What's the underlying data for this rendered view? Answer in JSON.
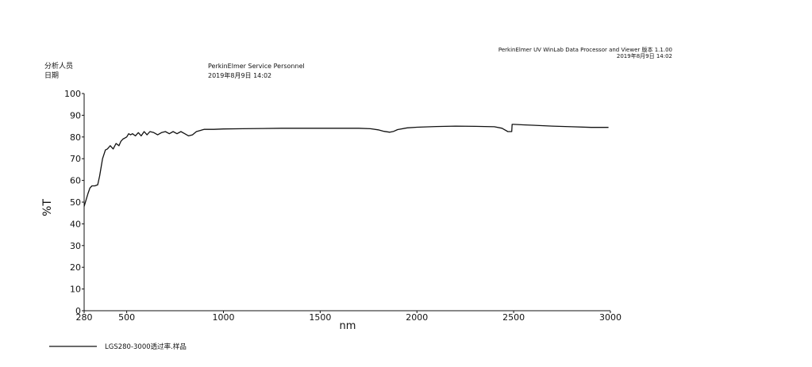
{
  "header": {
    "software": "PerkinElmer UV WinLab Data Processor and Viewer 版本 1.1.00",
    "software_date": "2019年8月9日 14:02",
    "analyst_label": "分析人员",
    "date_label": "日期",
    "analyst_value": "PerkinElmer Service Personnel",
    "date_value": "2019年8月9日 14:02"
  },
  "chart_data": {
    "type": "line",
    "xlabel": "nm",
    "ylabel": "%T",
    "xlim": [
      280,
      3000
    ],
    "ylim": [
      0,
      100
    ],
    "x_ticks": [
      280,
      500,
      1000,
      1500,
      2000,
      2500,
      3000
    ],
    "y_ticks": [
      0,
      10,
      20,
      30,
      40,
      50,
      60,
      70,
      80,
      90,
      100
    ],
    "grid": false,
    "legend_position": "bottom-left",
    "series": [
      {
        "name": "LGS280-3000透过率.样品",
        "color": "#111111",
        "x": [
          280,
          290,
          300,
          310,
          320,
          335,
          350,
          360,
          375,
          390,
          400,
          415,
          430,
          445,
          460,
          470,
          480,
          490,
          500,
          510,
          520,
          530,
          545,
          560,
          575,
          590,
          605,
          620,
          640,
          660,
          680,
          700,
          720,
          740,
          760,
          780,
          800,
          820,
          840,
          860,
          880,
          900,
          950,
          1000,
          1100,
          1200,
          1300,
          1400,
          1500,
          1600,
          1700,
          1760,
          1800,
          1830,
          1860,
          1880,
          1900,
          1950,
          2000,
          2100,
          2200,
          2300,
          2400,
          2440,
          2470,
          2490,
          2492,
          2500,
          2550,
          2600,
          2700,
          2800,
          2900,
          2990
        ],
        "y": [
          48,
          51,
          54,
          56.5,
          57.5,
          57.5,
          58,
          62,
          70,
          74,
          74.5,
          76,
          74.5,
          77,
          76,
          78,
          79,
          79.5,
          80,
          81.5,
          81,
          81.5,
          80.5,
          82,
          80.5,
          82.5,
          81,
          82.5,
          82,
          81,
          82,
          82.5,
          81.5,
          82.5,
          81.5,
          82.5,
          81.5,
          80.5,
          81,
          82.5,
          83,
          83.5,
          83.5,
          83.7,
          83.8,
          83.9,
          84,
          84,
          84,
          84,
          84,
          83.8,
          83.3,
          82.6,
          82.2,
          82.6,
          83.4,
          84.2,
          84.5,
          84.8,
          85,
          84.9,
          84.7,
          84,
          82.5,
          82.5,
          85.8,
          85.8,
          85.6,
          85.4,
          85,
          84.7,
          84.4,
          84.4
        ]
      }
    ]
  }
}
